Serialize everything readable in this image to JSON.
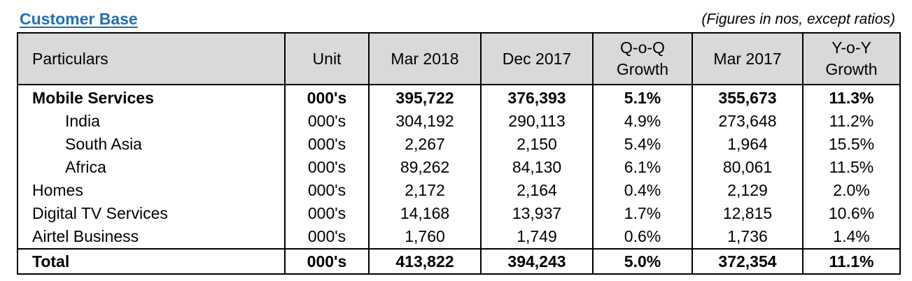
{
  "header": {
    "title": "Customer Base",
    "note": "(Figures in nos, except ratios)"
  },
  "table": {
    "columns": [
      {
        "line1": "Particulars",
        "line2": ""
      },
      {
        "line1": "Unit",
        "line2": ""
      },
      {
        "line1": "Mar 2018",
        "line2": ""
      },
      {
        "line1": "Dec 2017",
        "line2": ""
      },
      {
        "line1": "Q-o-Q",
        "line2": "Growth"
      },
      {
        "line1": "Mar 2017",
        "line2": ""
      },
      {
        "line1": "Y-o-Y",
        "line2": "Growth"
      }
    ],
    "rows": [
      {
        "label": "Mobile Services",
        "unit": "000's",
        "mar2018": "395,722",
        "dec2017": "376,393",
        "qoq": "5.1%",
        "mar2017": "355,673",
        "yoy": "11.3%"
      },
      {
        "label": "India",
        "unit": "000's",
        "mar2018": "304,192",
        "dec2017": "290,113",
        "qoq": "4.9%",
        "mar2017": "273,648",
        "yoy": "11.2%"
      },
      {
        "label": "South Asia",
        "unit": "000's",
        "mar2018": "2,267",
        "dec2017": "2,150",
        "qoq": "5.4%",
        "mar2017": "1,964",
        "yoy": "15.5%"
      },
      {
        "label": "Africa",
        "unit": "000's",
        "mar2018": "89,262",
        "dec2017": "84,130",
        "qoq": "6.1%",
        "mar2017": "80,061",
        "yoy": "11.5%"
      },
      {
        "label": "Homes",
        "unit": "000's",
        "mar2018": "2,172",
        "dec2017": "2,164",
        "qoq": "0.4%",
        "mar2017": "2,129",
        "yoy": "2.0%"
      },
      {
        "label": "Digital TV Services",
        "unit": "000's",
        "mar2018": "14,168",
        "dec2017": "13,937",
        "qoq": "1.7%",
        "mar2017": "12,815",
        "yoy": "10.6%"
      },
      {
        "label": "Airtel Business",
        "unit": "000's",
        "mar2018": "1,760",
        "dec2017": "1,749",
        "qoq": "0.6%",
        "mar2017": "1,736",
        "yoy": "1.4%"
      },
      {
        "label": "Total",
        "unit": "000's",
        "mar2018": "413,822",
        "dec2017": "394,243",
        "qoq": "5.0%",
        "mar2017": "372,354",
        "yoy": "11.1%"
      }
    ]
  }
}
